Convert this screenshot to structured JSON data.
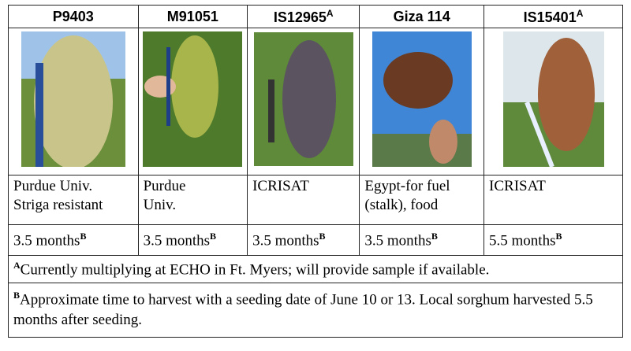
{
  "columns": [
    {
      "name": "P9403",
      "sup": null,
      "description": [
        "Purdue Univ.",
        "Striga resistant"
      ],
      "maturity": "3.5 months",
      "maturity_sup": "B"
    },
    {
      "name": "M91051",
      "sup": null,
      "description": [
        "Purdue",
        "Univ."
      ],
      "maturity": "3.5 months",
      "maturity_sup": "B"
    },
    {
      "name": "IS12965",
      "sup": "A",
      "description": [
        "ICRISAT"
      ],
      "maturity": "3.5 months",
      "maturity_sup": "B"
    },
    {
      "name": "Giza 114",
      "sup": null,
      "description": [
        "Egypt-for fuel",
        "(stalk), food"
      ],
      "maturity": "3.5 months",
      "maturity_sup": "B"
    },
    {
      "name": "IS15401",
      "sup": "A",
      "description": [
        "ICRISAT"
      ],
      "maturity": "5.5 months",
      "maturity_sup": "B"
    }
  ],
  "footnotes": [
    {
      "mark": "A",
      "text": "Currently multiplying at ECHO in Ft. Myers; will provide sample if available."
    },
    {
      "mark": "B",
      "text": "Approximate time to harvest with a seeding date of June 10 or 13.  Local sorghum harvested 5.5 months after seeding."
    }
  ]
}
